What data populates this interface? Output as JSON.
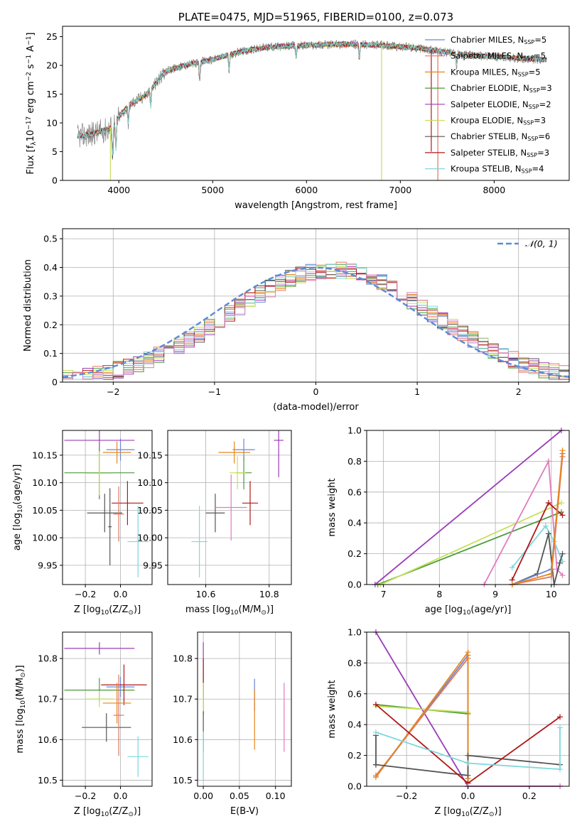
{
  "colors": {
    "chabrier_miles": "#6a86d6",
    "salpeter_miles": "#e07860",
    "kroupa_miles": "#e8861a",
    "chabrier_elodie": "#4a9a3a",
    "salpeter_elodie": "#9b3db8",
    "kroupa_elodie": "#c6e05a",
    "chabrier_stelib": "#555555",
    "salpeter_stelib": "#b01818",
    "kroupa_stelib": "#7ed8dc",
    "pink": "#e07cc0",
    "normal_curve": "#5b8bd6",
    "spectrum_data": "#808080"
  },
  "chart_data": [
    {
      "id": "spectrum",
      "type": "line",
      "title": "PLATE=0475, MJD=51965, FIBERID=0100, z=0.073",
      "xlabel": "wavelength [Angstrom, rest frame]",
      "ylabel_parts": [
        "Flux [f",
        "λ",
        "10",
        "−17",
        " erg cm",
        "−2",
        " s",
        "−1",
        " A",
        "−1",
        "]"
      ],
      "xlim": [
        3400,
        8800
      ],
      "ylim": [
        0,
        26.8
      ],
      "xticks": [
        4000,
        5000,
        6000,
        7000,
        8000
      ],
      "yticks": [
        0,
        5,
        10,
        15,
        20,
        25
      ],
      "grid": false,
      "legend_position": "top-right",
      "continuum_knots": [
        [
          3500,
          7.5
        ],
        [
          3700,
          8
        ],
        [
          3900,
          9
        ],
        [
          4000,
          11
        ],
        [
          4100,
          13
        ],
        [
          4300,
          15
        ],
        [
          4500,
          19
        ],
        [
          4700,
          20
        ],
        [
          5000,
          21
        ],
        [
          5300,
          22.4
        ],
        [
          5600,
          23.2
        ],
        [
          6000,
          23.5
        ],
        [
          6400,
          23.7
        ],
        [
          6800,
          23.5
        ],
        [
          7200,
          23
        ],
        [
          7600,
          22
        ],
        [
          8000,
          21.5
        ],
        [
          8500,
          21
        ]
      ],
      "legend": [
        {
          "name": "Chabrier MILES",
          "nssp": "5",
          "color_key": "chabrier_miles"
        },
        {
          "name": "Salpeter MILES",
          "nssp": "5",
          "color_key": "salpeter_miles"
        },
        {
          "name": "Kroupa MILES",
          "nssp": "5",
          "color_key": "kroupa_miles"
        },
        {
          "name": "Chabrier ELODIE",
          "nssp": "3",
          "color_key": "chabrier_elodie"
        },
        {
          "name": "Salpeter ELODIE",
          "nssp": "2",
          "color_key": "salpeter_elodie"
        },
        {
          "name": "Kroupa ELODIE",
          "nssp": "3",
          "color_key": "kroupa_elodie"
        },
        {
          "name": "Chabrier STELIB",
          "nssp": "6",
          "color_key": "chabrier_stelib"
        },
        {
          "name": "Salpeter STELIB",
          "nssp": "3",
          "color_key": "salpeter_stelib"
        },
        {
          "name": "Kroupa STELIB",
          "nssp": "4",
          "color_key": "kroupa_stelib"
        }
      ]
    },
    {
      "id": "residuals",
      "type": "histogram",
      "xlabel": "(data-model)/error",
      "ylabel": "Normed distribution",
      "xlim": [
        -2.5,
        2.5
      ],
      "ylim": [
        0,
        0.535
      ],
      "xticks": [
        -2,
        -1,
        0,
        1,
        2
      ],
      "yticks": [
        0.0,
        0.1,
        0.2,
        0.3,
        0.4,
        0.5
      ],
      "grid": true,
      "bin_width": 0.1,
      "legend_position": "top-right",
      "legend_label": "𝒩(0, 1)",
      "series": [
        {
          "color_key": "chabrier_miles",
          "seed": 1
        },
        {
          "color_key": "salpeter_miles",
          "seed": 2
        },
        {
          "color_key": "kroupa_miles",
          "seed": 3
        },
        {
          "color_key": "chabrier_elodie",
          "seed": 4
        },
        {
          "color_key": "salpeter_elodie",
          "seed": 5
        },
        {
          "color_key": "kroupa_elodie",
          "seed": 6
        },
        {
          "color_key": "chabrier_stelib",
          "seed": 7
        },
        {
          "color_key": "salpeter_stelib",
          "seed": 8
        },
        {
          "color_key": "kroupa_stelib",
          "seed": 9
        },
        {
          "color_key": "pink",
          "seed": 10
        }
      ]
    },
    {
      "id": "age_vs_z",
      "type": "errorbar",
      "xlabel_parts": [
        "Z [log",
        "10",
        "(Z/Z",
        "⊙",
        ")]"
      ],
      "ylabel_parts": [
        "age  [log",
        "10",
        "(age/yr)]"
      ],
      "xlim": [
        -0.33,
        0.18
      ],
      "ylim": [
        9.915,
        10.195
      ],
      "xticks": [
        -0.2,
        0.0
      ],
      "xtick_labels": [
        "−0.2",
        "0.0"
      ],
      "yticks": [
        9.95,
        10.0,
        10.05,
        10.1,
        10.15
      ],
      "ytick_labels": [
        "9.95",
        "10.00",
        "10.05",
        "10.10",
        "10.15"
      ],
      "grid": true,
      "points": [
        {
          "x": 0.0,
          "xerr": 0.08,
          "y": 10.16,
          "yerr": 0.02,
          "color_key": "chabrier_miles"
        },
        {
          "x": -0.02,
          "xerr": 0.08,
          "y": 10.155,
          "yerr": 0.02,
          "color_key": "kroupa_miles"
        },
        {
          "x": -0.12,
          "xerr": 0.2,
          "y": 10.177,
          "yerr": 0.107,
          "color_key": "salpeter_elodie"
        },
        {
          "x": -0.12,
          "xerr": 0.2,
          "y": 10.118,
          "yerr": 0.045,
          "color_key": "chabrier_elodie"
        },
        {
          "x": -0.12,
          "xerr": 0.08,
          "y": 10.117,
          "yerr": 0.04,
          "color_key": "kroupa_elodie"
        },
        {
          "x": -0.09,
          "xerr": 0.1,
          "y": 10.045,
          "yerr": 0.035,
          "color_key": "chabrier_stelib"
        },
        {
          "x": 0.04,
          "xerr": 0.09,
          "y": 10.063,
          "yerr": 0.04,
          "color_key": "salpeter_stelib"
        },
        {
          "x": -0.01,
          "xerr": 0.03,
          "y": 10.043,
          "yerr": 0.05,
          "color_key": "salpeter_miles"
        },
        {
          "x": 0.1,
          "xerr": 0.06,
          "y": 9.993,
          "yerr": 0.065,
          "color_key": "kroupa_stelib"
        },
        {
          "x": -0.06,
          "xerr": 0.01,
          "y": 10.02,
          "yerr": 0.07,
          "color_key": "chabrier_stelib"
        }
      ]
    },
    {
      "id": "age_vs_mass",
      "type": "errorbar",
      "xlabel_parts": [
        "mass [log",
        "10",
        "(M/M",
        "⊙",
        ")]"
      ],
      "xlim": [
        10.48,
        10.87
      ],
      "ylim": [
        9.915,
        10.195
      ],
      "xticks": [
        10.6,
        10.8
      ],
      "xtick_labels": [
        "10.6",
        "10.8"
      ],
      "yticks": [
        9.95,
        10.0,
        10.05,
        10.1,
        10.15
      ],
      "ytick_labels": [
        "9.95",
        "10.00",
        "10.05",
        "10.10",
        "10.15"
      ],
      "grid": true,
      "points": [
        {
          "x": 10.72,
          "xerr": 0.035,
          "y": 10.16,
          "yerr": 0.02,
          "color_key": "chabrier_miles"
        },
        {
          "x": 10.69,
          "xerr": 0.05,
          "y": 10.155,
          "yerr": 0.02,
          "color_key": "kroupa_miles"
        },
        {
          "x": 10.83,
          "xerr": 0.015,
          "y": 10.177,
          "yerr": 0.067,
          "color_key": "salpeter_elodie"
        },
        {
          "x": 10.72,
          "xerr": 0.025,
          "y": 10.118,
          "yerr": 0.03,
          "color_key": "chabrier_elodie"
        },
        {
          "x": 10.7,
          "xerr": 0.025,
          "y": 10.118,
          "yerr": 0.03,
          "color_key": "kroupa_elodie"
        },
        {
          "x": 10.63,
          "xerr": 0.03,
          "y": 10.045,
          "yerr": 0.035,
          "color_key": "chabrier_stelib"
        },
        {
          "x": 10.74,
          "xerr": 0.025,
          "y": 10.063,
          "yerr": 0.04,
          "color_key": "salpeter_stelib"
        },
        {
          "x": 10.68,
          "xerr": 0.05,
          "y": 10.055,
          "yerr": 0.06,
          "color_key": "pink"
        },
        {
          "x": 10.58,
          "xerr": 0.025,
          "y": 9.993,
          "yerr": 0.065,
          "color_key": "kroupa_stelib"
        }
      ]
    },
    {
      "id": "massweight_vs_age",
      "type": "line",
      "xlabel_parts": [
        "age  [log",
        "10",
        "(age/yr)]"
      ],
      "ylabel": "mass weight",
      "xlim": [
        6.7,
        10.32
      ],
      "ylim": [
        0,
        1.0
      ],
      "xticks": [
        7,
        8,
        9,
        10
      ],
      "yticks": [
        0,
        0.2,
        0.4,
        0.6,
        0.8,
        1.0
      ],
      "ytick_labels": [
        "0.0",
        "0.2",
        "0.4",
        "0.6",
        "0.8",
        "1.0"
      ],
      "grid": true,
      "series": [
        {
          "color_key": "salpeter_elodie",
          "x": [
            6.85,
            10.18
          ],
          "y": [
            0.0,
            1.0
          ]
        },
        {
          "color_key": "chabrier_elodie",
          "x": [
            6.9,
            10.18
          ],
          "y": [
            0.0,
            0.47
          ]
        },
        {
          "color_key": "kroupa_elodie",
          "x": [
            6.95,
            10.18
          ],
          "y": [
            0.0,
            0.53
          ]
        },
        {
          "color_key": "pink",
          "x": [
            8.8,
            9.95,
            10.1,
            10.2
          ],
          "y": [
            0.0,
            0.8,
            0.1,
            0.06
          ]
        },
        {
          "color_key": "kroupa_stelib",
          "x": [
            9.3,
            9.9,
            10.05,
            10.2
          ],
          "y": [
            0.11,
            0.38,
            0.28,
            0.15
          ]
        },
        {
          "color_key": "chabrier_stelib",
          "x": [
            9.3,
            9.75,
            9.95,
            10.05,
            10.15,
            10.2
          ],
          "y": [
            0.0,
            0.07,
            0.33,
            0.0,
            0.14,
            0.2
          ]
        },
        {
          "color_key": "salpeter_stelib",
          "x": [
            9.3,
            9.95,
            10.2
          ],
          "y": [
            0.03,
            0.53,
            0.45
          ]
        },
        {
          "color_key": "chabrier_miles",
          "x": [
            9.3,
            10.0,
            10.2
          ],
          "y": [
            0.0,
            0.1,
            0.85
          ]
        },
        {
          "color_key": "salpeter_miles",
          "x": [
            9.3,
            10.0,
            10.2
          ],
          "y": [
            0.0,
            0.05,
            0.83
          ]
        },
        {
          "color_key": "kroupa_miles",
          "x": [
            9.3,
            10.0,
            10.2
          ],
          "y": [
            0.0,
            0.07,
            0.87
          ]
        }
      ]
    },
    {
      "id": "mass_vs_z",
      "type": "errorbar",
      "xlabel_parts": [
        "Z [log",
        "10",
        "(Z/Z",
        "⊙",
        ")]"
      ],
      "ylabel_parts": [
        "mass [log",
        "10",
        "(M/M",
        "⊙",
        ")]"
      ],
      "xlim": [
        -0.33,
        0.18
      ],
      "ylim": [
        10.485,
        10.865
      ],
      "xticks": [
        -0.2,
        0.0
      ],
      "xtick_labels": [
        "−0.2",
        "0.0"
      ],
      "yticks": [
        10.5,
        10.6,
        10.7,
        10.8
      ],
      "ytick_labels": [
        "10.5",
        "10.6",
        "10.7",
        "10.8"
      ],
      "grid": true,
      "points": [
        {
          "x": -0.12,
          "xerr": 0.2,
          "y": 10.825,
          "yerr": 0.015,
          "color_key": "salpeter_elodie"
        },
        {
          "x": -0.12,
          "xerr": 0.2,
          "y": 10.722,
          "yerr": 0.03,
          "color_key": "chabrier_elodie"
        },
        {
          "x": -0.12,
          "xerr": 0.08,
          "y": 10.7,
          "yerr": 0.02,
          "color_key": "kroupa_elodie"
        },
        {
          "x": 0.0,
          "xerr": 0.08,
          "y": 10.73,
          "yerr": 0.025,
          "color_key": "chabrier_miles"
        },
        {
          "x": 0.02,
          "xerr": 0.13,
          "y": 10.735,
          "yerr": 0.05,
          "color_key": "salpeter_stelib"
        },
        {
          "x": -0.02,
          "xerr": 0.08,
          "y": 10.69,
          "yerr": 0.05,
          "color_key": "kroupa_miles"
        },
        {
          "x": -0.08,
          "xerr": 0.14,
          "y": 10.63,
          "yerr": 0.035,
          "color_key": "chabrier_stelib"
        },
        {
          "x": -0.01,
          "xerr": 0.03,
          "y": 10.66,
          "yerr": 0.1,
          "color_key": "salpeter_miles"
        },
        {
          "x": 0.1,
          "xerr": 0.06,
          "y": 10.558,
          "yerr": 0.05,
          "color_key": "kroupa_stelib"
        }
      ]
    },
    {
      "id": "mass_vs_ebv",
      "type": "errorbar",
      "xlabel": "E(B-V)",
      "xlim": [
        -0.008,
        0.122
      ],
      "ylim": [
        10.485,
        10.865
      ],
      "xticks": [
        0.0,
        0.05,
        0.1
      ],
      "xtick_labels": [
        "0.00",
        "0.05",
        "0.10"
      ],
      "yticks": [
        10.5,
        10.6,
        10.7,
        10.8
      ],
      "ytick_labels": [
        "10.5",
        "10.6",
        "10.7",
        "10.8"
      ],
      "grid": true,
      "points": [
        {
          "x": 0.0,
          "xerr": 0,
          "y": 10.77,
          "yerr": 0.07,
          "color_key": "salpeter_elodie"
        },
        {
          "x": 0.0,
          "xerr": 0,
          "y": 10.73,
          "yerr": 0.07,
          "color_key": "salpeter_stelib"
        },
        {
          "x": 0.0,
          "xerr": 0,
          "y": 10.7,
          "yerr": 0.04,
          "color_key": "kroupa_elodie"
        },
        {
          "x": 0.0,
          "xerr": 0,
          "y": 10.62,
          "yerr": 0.05,
          "color_key": "chabrier_stelib"
        },
        {
          "x": 0.0,
          "xerr": 0,
          "y": 10.56,
          "yerr": 0.06,
          "color_key": "kroupa_stelib"
        },
        {
          "x": 0.071,
          "xerr": 0,
          "y": 10.71,
          "yerr": 0.04,
          "color_key": "chabrier_miles"
        },
        {
          "x": 0.071,
          "xerr": 0,
          "y": 10.65,
          "yerr": 0.075,
          "color_key": "kroupa_miles"
        },
        {
          "x": 0.112,
          "xerr": 0,
          "y": 10.655,
          "yerr": 0.085,
          "color_key": "pink"
        }
      ]
    },
    {
      "id": "massweight_vs_z",
      "type": "line",
      "xlabel_parts": [
        "Z [log",
        "10",
        "(Z/Z",
        "⊙",
        ")]"
      ],
      "ylabel": "mass weight",
      "xlim": [
        -0.33,
        0.33
      ],
      "ylim": [
        0,
        1.0
      ],
      "xticks": [
        -0.2,
        0.0,
        0.2
      ],
      "xtick_labels": [
        "−0.2",
        "0.0",
        "0.2"
      ],
      "yticks": [
        0,
        0.2,
        0.4,
        0.6,
        0.8,
        1.0
      ],
      "ytick_labels": [
        "0.0",
        "0.2",
        "0.4",
        "0.6",
        "0.8",
        "1.0"
      ],
      "grid": true,
      "series": [
        {
          "color_key": "salpeter_elodie",
          "x": [
            -0.3,
            0.0,
            0.3
          ],
          "y": [
            1.0,
            0.0,
            0.0
          ]
        },
        {
          "color_key": "chabrier_elodie",
          "x": [
            -0.3,
            0.0,
            0.0
          ],
          "y": [
            0.53,
            0.47,
            0.0
          ]
        },
        {
          "color_key": "kroupa_elodie",
          "x": [
            -0.3,
            0.0,
            0.0
          ],
          "y": [
            0.52,
            0.48,
            0.0
          ]
        },
        {
          "color_key": "chabrier_miles",
          "x": [
            -0.3,
            0.0,
            0.0
          ],
          "y": [
            0.06,
            0.85,
            0.05
          ]
        },
        {
          "color_key": "salpeter_miles",
          "x": [
            -0.3,
            0.0,
            0.0
          ],
          "y": [
            0.07,
            0.83,
            0.05
          ]
        },
        {
          "color_key": "kroupa_miles",
          "x": [
            -0.3,
            0.0,
            0.0
          ],
          "y": [
            0.06,
            0.87,
            0.05
          ]
        },
        {
          "color_key": "chabrier_stelib",
          "x": [
            -0.3,
            -0.3,
            -0.3,
            0.0,
            0.0,
            0.3
          ],
          "y": [
            0.33,
            0.14,
            0.14,
            0.07,
            0.2,
            0.14
          ]
        },
        {
          "color_key": "salpeter_stelib",
          "x": [
            -0.3,
            0.0,
            0.3
          ],
          "y": [
            0.53,
            0.02,
            0.45
          ]
        },
        {
          "color_key": "kroupa_stelib",
          "x": [
            -0.3,
            0.0,
            0.3,
            0.3
          ],
          "y": [
            0.35,
            0.15,
            0.11,
            0.38
          ]
        },
        {
          "color_key": "pink",
          "x": [
            0.0,
            0.3
          ],
          "y": [
            0.0,
            0.0
          ]
        }
      ]
    }
  ]
}
